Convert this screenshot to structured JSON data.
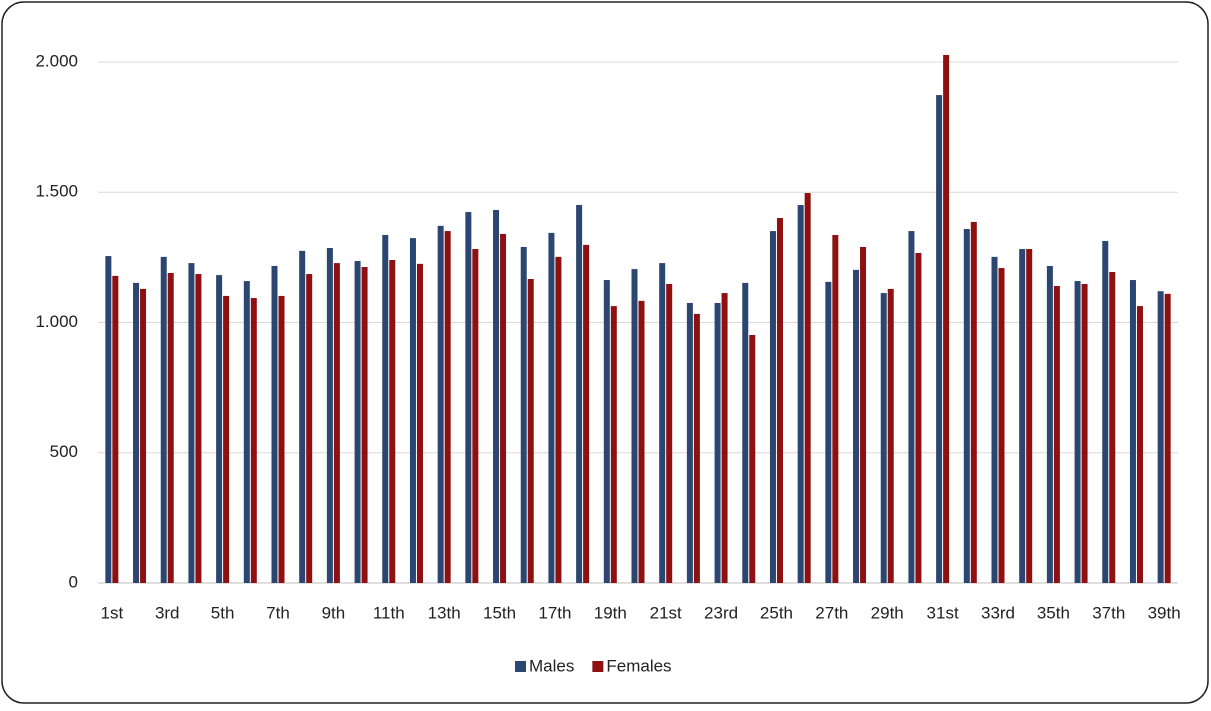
{
  "chart_data": {
    "type": "bar",
    "categories": [
      "1st",
      null,
      "3rd",
      null,
      "5th",
      null,
      "7th",
      null,
      "9th",
      null,
      "11th",
      null,
      "13th",
      null,
      "15th",
      null,
      "17th",
      null,
      "19th",
      null,
      "21st",
      null,
      "23rd",
      null,
      "25th",
      null,
      "27th",
      null,
      "29th",
      null,
      "31st",
      null,
      "33rd",
      null,
      "35th",
      null,
      "37th",
      null,
      "39th"
    ],
    "series": [
      {
        "name": "Males",
        "color": "#2b4670",
        "values": [
          1255,
          1152,
          1252,
          1228,
          1182,
          1159,
          1217,
          1275,
          1286,
          1236,
          1336,
          1324,
          1371,
          1424,
          1432,
          1290,
          1344,
          1451,
          1163,
          1205,
          1228,
          1075,
          1075,
          1152,
          1351,
          1451,
          1156,
          1202,
          1113,
          1351,
          1873,
          1359,
          1252,
          1282,
          1217,
          1159,
          1313,
          1163,
          1120
        ]
      },
      {
        "name": "Females",
        "color": "#8e1010",
        "values": [
          1179,
          1129,
          1190,
          1186,
          1102,
          1094,
          1102,
          1186,
          1228,
          1213,
          1240,
          1225,
          1351,
          1282,
          1340,
          1167,
          1252,
          1298,
          1063,
          1083,
          1148,
          1033,
          1113,
          952,
          1401,
          1497,
          1336,
          1290,
          1129,
          1267,
          2027,
          1386,
          1209,
          1282,
          1140,
          1148,
          1194,
          1063,
          1110
        ]
      }
    ],
    "ylim": [
      0,
      2000
    ],
    "yticks": [
      0,
      500,
      {
        "value": 1000,
        "label": "1.000"
      },
      {
        "value": 1500,
        "label": "1.500"
      },
      {
        "value": 2000,
        "label": "2.000"
      }
    ],
    "grid": true,
    "legend": "bottom"
  }
}
